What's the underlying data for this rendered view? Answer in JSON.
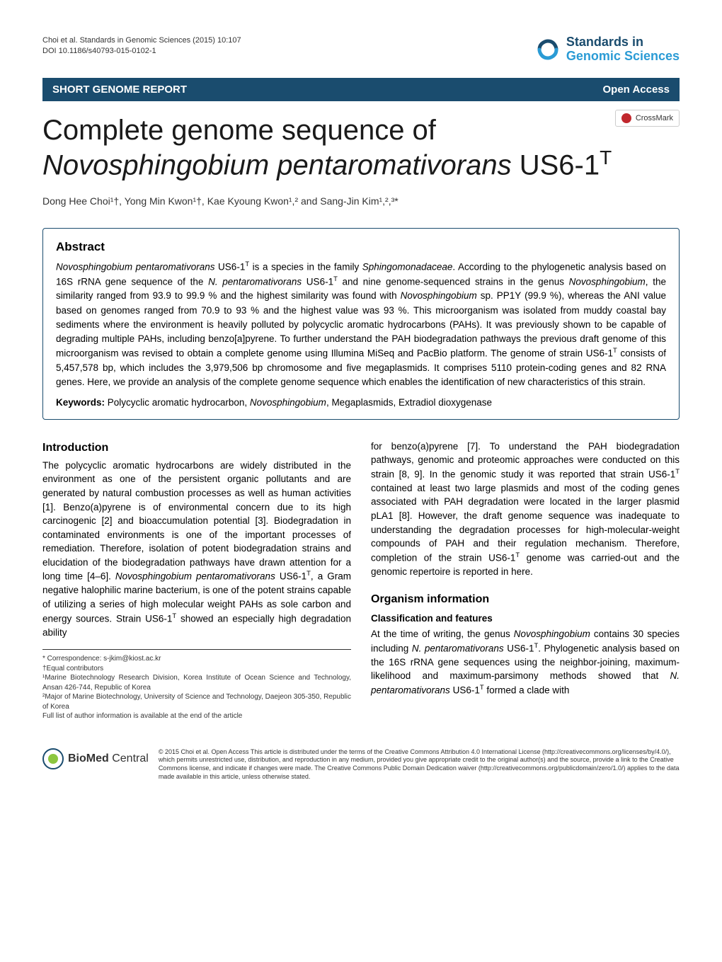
{
  "meta": {
    "citation": "Choi et al. Standards in Genomic Sciences (2015) 10:107",
    "doi": "DOI 10.1186/s40793-015-0102-1"
  },
  "brand": {
    "line1": "Standards in",
    "line2": "Genomic Sciences"
  },
  "section_bar": {
    "left": "SHORT GENOME REPORT",
    "right": "Open Access"
  },
  "crossmark": {
    "label": "CrossMark"
  },
  "title": {
    "pre": "Complete genome sequence of ",
    "species": "Novosphingobium pentaromativorans",
    "post": " US6-1",
    "sup": "T"
  },
  "authors": "Dong Hee Choi¹†, Yong Min Kwon¹†, Kae Kyoung Kwon¹,² and Sang-Jin Kim¹,²,³*",
  "abstract": {
    "heading": "Abstract",
    "body_parts": [
      {
        "t": "it",
        "v": "Novosphingobium pentaromativorans"
      },
      {
        "t": "n",
        "v": " US6-1"
      },
      {
        "t": "sup",
        "v": "T"
      },
      {
        "t": "n",
        "v": " is a species in the family "
      },
      {
        "t": "it",
        "v": "Sphingomonadaceae"
      },
      {
        "t": "n",
        "v": ". According to the phylogenetic analysis based on 16S rRNA gene sequence of the "
      },
      {
        "t": "it",
        "v": "N. pentaromativorans"
      },
      {
        "t": "n",
        "v": " US6-1"
      },
      {
        "t": "sup",
        "v": "T"
      },
      {
        "t": "n",
        "v": " and nine genome-sequenced strains in the genus "
      },
      {
        "t": "it",
        "v": "Novosphingobium"
      },
      {
        "t": "n",
        "v": ", the similarity ranged from 93.9 to 99.9 % and the highest similarity was found with "
      },
      {
        "t": "it",
        "v": "Novosphingobium"
      },
      {
        "t": "n",
        "v": " sp. PP1Y (99.9 %), whereas the ANI value based on genomes ranged from 70.9 to 93 % and the highest value was 93 %. This microorganism was isolated from muddy coastal bay sediments where the environment is heavily polluted by polycyclic aromatic hydrocarbons (PAHs). It was previously shown to be capable of degrading multiple PAHs, including benzo[a]pyrene. To further understand the PAH biodegradation pathways the previous draft genome of this microorganism was revised to obtain a complete genome using Illumina MiSeq and PacBio platform. The genome of strain US6-1"
      },
      {
        "t": "sup",
        "v": "T"
      },
      {
        "t": "n",
        "v": " consists of 5,457,578 bp, which includes the 3,979,506 bp chromosome and five megaplasmids. It comprises 5110 protein-coding genes and 82 RNA genes. Here, we provide an analysis of the complete genome sequence which enables the identification of new characteristics of this strain."
      }
    ],
    "keywords_label": "Keywords:",
    "keywords_parts": [
      {
        "t": "n",
        "v": " Polycyclic aromatic hydrocarbon, "
      },
      {
        "t": "it",
        "v": "Novosphingobium"
      },
      {
        "t": "n",
        "v": ", Megaplasmids, Extradiol dioxygenase"
      }
    ]
  },
  "introduction": {
    "heading": "Introduction",
    "parts": [
      {
        "t": "n",
        "v": "The polycyclic aromatic hydrocarbons are widely distributed in the environment as one of the persistent organic pollutants and are generated by natural combustion processes as well as human activities [1]. Benzo(a)pyrene is of environmental concern due to its high carcinogenic [2] and bioaccumulation potential [3]. Biodegradation in contaminated environments is one of the important processes of remediation. Therefore, isolation of potent biodegradation strains and elucidation of the biodegradation pathways have drawn attention for a long time [4–6]. "
      },
      {
        "t": "it",
        "v": "Novosphingobium pentaromativorans"
      },
      {
        "t": "n",
        "v": " US6-1"
      },
      {
        "t": "sup",
        "v": "T"
      },
      {
        "t": "n",
        "v": ", a Gram negative halophilic marine bacterium, is one of the potent strains capable of utilizing a series of high molecular weight PAHs as sole carbon and energy sources. Strain US6-1"
      },
      {
        "t": "sup",
        "v": "T"
      },
      {
        "t": "n",
        "v": " showed an especially high degradation ability"
      }
    ]
  },
  "col2_intro_continued": {
    "parts": [
      {
        "t": "n",
        "v": "for benzo(a)pyrene [7]. To understand the PAH biodegradation pathways, genomic and proteomic approaches were conducted on this strain [8, 9]. In the genomic study it was reported that strain US6-1"
      },
      {
        "t": "sup",
        "v": "T"
      },
      {
        "t": "n",
        "v": " contained at least two large plasmids and most of the coding genes associated with PAH degradation were located in the larger plasmid pLA1 [8]. However, the draft genome sequence was inadequate to understanding the degradation processes for high-molecular-weight compounds of PAH and their regulation mechanism. Therefore, completion of the strain US6-1"
      },
      {
        "t": "sup",
        "v": "T"
      },
      {
        "t": "n",
        "v": " genome was carried-out and the genomic repertoire is reported in here."
      }
    ]
  },
  "organism": {
    "heading": "Organism information",
    "subheading": "Classification and features",
    "parts": [
      {
        "t": "n",
        "v": "At the time of writing, the genus "
      },
      {
        "t": "it",
        "v": "Novosphingobium"
      },
      {
        "t": "n",
        "v": " contains 30 species including "
      },
      {
        "t": "it",
        "v": "N. pentaromativorans"
      },
      {
        "t": "n",
        "v": " US6-1"
      },
      {
        "t": "sup",
        "v": "T"
      },
      {
        "t": "n",
        "v": ". Phylogenetic analysis based on the 16S rRNA gene sequences using the neighbor-joining, maximum-likelihood and maximum-parsimony methods showed that "
      },
      {
        "t": "it",
        "v": "N. pentaromativorans"
      },
      {
        "t": "n",
        "v": " US6-1"
      },
      {
        "t": "sup",
        "v": "T"
      },
      {
        "t": "n",
        "v": " formed a clade with"
      }
    ]
  },
  "footnotes": {
    "correspondence": "* Correspondence: s-jkim@kiost.ac.kr",
    "equal": "†Equal contributors",
    "aff1": "¹Marine Biotechnology Research Division, Korea Institute of Ocean Science and Technology, Ansan 426-744, Republic of Korea",
    "aff2": "²Major of Marine Biotechnology, University of Science and Technology, Daejeon 305-350, Republic of Korea",
    "full": "Full list of author information is available at the end of the article"
  },
  "footer": {
    "bmc_name_a": "BioMed",
    "bmc_name_b": " Central",
    "license": "© 2015 Choi et al. Open Access This article is distributed under the terms of the Creative Commons Attribution 4.0 International License (http://creativecommons.org/licenses/by/4.0/), which permits unrestricted use, distribution, and reproduction in any medium, provided you give appropriate credit to the original author(s) and the source, provide a link to the Creative Commons license, and indicate if changes were made. The Creative Commons Public Domain Dedication waiver (http://creativecommons.org/publicdomain/zero/1.0/) applies to the data made available in this article, unless otherwise stated."
  },
  "colors": {
    "primary": "#1a4c6e",
    "accent": "#2a9bd5",
    "crossmark": "#c1272d",
    "bmc_inner": "#8cc63f",
    "bmc_outer": "#1a4c6e"
  }
}
